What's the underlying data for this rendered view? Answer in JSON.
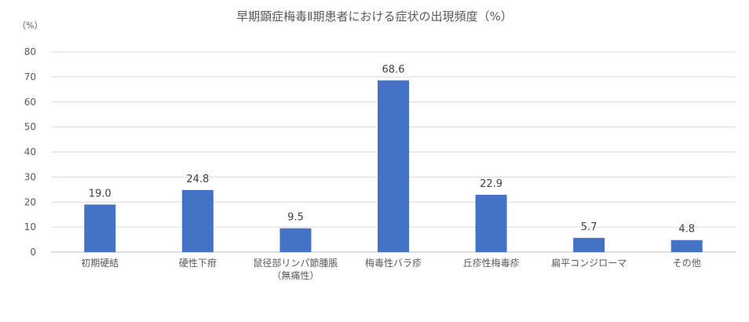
{
  "chart_data": {
    "type": "bar",
    "title": "早期顕症梅毒Ⅱ期患者における症状の出現頻度（%）",
    "ylabel": "（%）",
    "xlabel": "",
    "categories": [
      [
        "初期硬結"
      ],
      [
        "硬性下疳"
      ],
      [
        "鼠径部リンパ節腫脹",
        "（無痛性）"
      ],
      [
        "梅毒性バラ疹"
      ],
      [
        "丘疹性梅毒疹"
      ],
      [
        "扁平コンジローマ"
      ],
      [
        "その他"
      ]
    ],
    "values": [
      19.0,
      24.8,
      9.5,
      68.6,
      22.9,
      5.7,
      4.8
    ],
    "data_labels": [
      "19.0",
      "24.8",
      "9.5",
      "68.6",
      "22.9",
      "5.7",
      "4.8"
    ],
    "ylim": [
      0,
      80
    ],
    "yticks": [
      0,
      10,
      20,
      30,
      40,
      50,
      60,
      70,
      80
    ],
    "grid": true,
    "legend": "none",
    "colors": {
      "bar": "#4472C4",
      "grid": "#D9D9D9",
      "text": "#595959"
    }
  }
}
